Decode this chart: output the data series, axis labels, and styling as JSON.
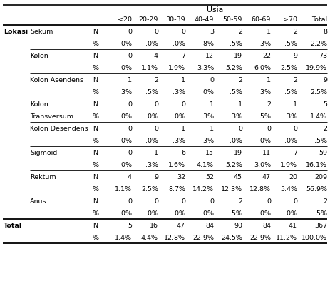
{
  "title": "Usia",
  "col_headers": [
    "<20",
    "20-29",
    "30-39",
    "40-49",
    "50-59",
    "60-69",
    ">70",
    "Total"
  ],
  "rows": [
    {
      "group": "Sekum",
      "n_values": [
        "0",
        "0",
        "0",
        "3",
        "2",
        "1",
        "2",
        "8"
      ],
      "pct_values": [
        ".0%",
        ".0%",
        ".0%",
        ".8%",
        ".5%",
        ".3%",
        ".5%",
        "2.2%"
      ]
    },
    {
      "group": "Kolon",
      "n_values": [
        "0",
        "4",
        "7",
        "12",
        "19",
        "22",
        "9",
        "73"
      ],
      "pct_values": [
        ".0%",
        "1.1%",
        "1.9%",
        "3.3%",
        "5.2%",
        "6.0%",
        "2.5%",
        "19.9%"
      ]
    },
    {
      "group": "Kolon Asendens",
      "n_values": [
        "1",
        "2",
        "1",
        "0",
        "2",
        "1",
        "2",
        "9"
      ],
      "pct_values": [
        ".3%",
        ".5%",
        ".3%",
        ".0%",
        ".5%",
        ".3%",
        ".5%",
        "2.5%"
      ]
    },
    {
      "group_line1": "Kolon",
      "group_line2": "Transversum",
      "n_values": [
        "0",
        "0",
        "0",
        "1",
        "1",
        "2",
        "1",
        "5"
      ],
      "pct_values": [
        ".0%",
        ".0%",
        ".0%",
        ".3%",
        ".3%",
        ".5%",
        ".3%",
        "1.4%"
      ]
    },
    {
      "group": "Kolon Desendens",
      "n_values": [
        "0",
        "0",
        "1",
        "1",
        "0",
        "0",
        "0",
        "2"
      ],
      "pct_values": [
        ".0%",
        ".0%",
        ".3%",
        ".3%",
        ".0%",
        ".0%",
        ".0%",
        ".5%"
      ]
    },
    {
      "group": "Sigmoid",
      "n_values": [
        "0",
        "1",
        "6",
        "15",
        "19",
        "11",
        "7",
        "59"
      ],
      "pct_values": [
        ".0%",
        ".3%",
        "1.6%",
        "4.1%",
        "5.2%",
        "3.0%",
        "1.9%",
        "16.1%"
      ]
    },
    {
      "group": "Rektum",
      "n_values": [
        "4",
        "9",
        "32",
        "52",
        "45",
        "47",
        "20",
        "209"
      ],
      "pct_values": [
        "1.1%",
        "2.5%",
        "8.7%",
        "14.2%",
        "12.3%",
        "12.8%",
        "5.4%",
        "56.9%"
      ]
    },
    {
      "group": "Anus",
      "n_values": [
        "0",
        "0",
        "0",
        "0",
        "2",
        "0",
        "0",
        "2"
      ],
      "pct_values": [
        ".0%",
        ".0%",
        ".0%",
        ".0%",
        ".5%",
        ".0%",
        ".0%",
        ".5%"
      ]
    }
  ],
  "total_n": [
    "5",
    "16",
    "47",
    "84",
    "90",
    "84",
    "41",
    "367"
  ],
  "total_pct": [
    "1.4%",
    "4.4%",
    "12.8%",
    "22.9%",
    "24.5%",
    "22.9%",
    "11.2%",
    "100.0%"
  ],
  "bg_color": "#ffffff",
  "line_color": "#000000",
  "fontsize": 6.8,
  "title_fontsize": 7.8
}
